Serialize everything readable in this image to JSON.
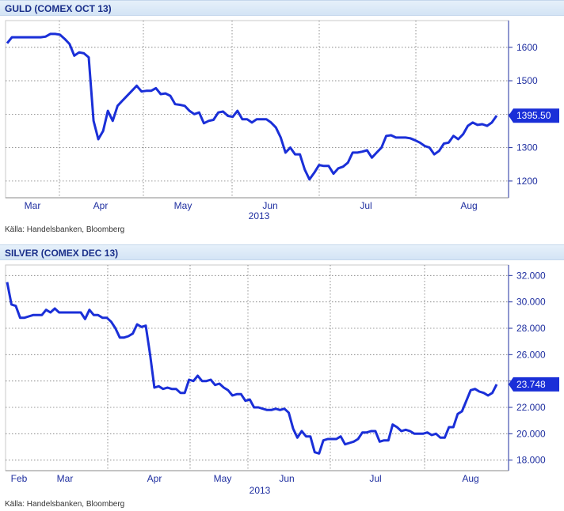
{
  "chart_data": [
    {
      "type": "line",
      "title": "GULD (COMEX OCT 13)",
      "source": "Källa: Handelsbanken, Bloomberg",
      "year": "2013",
      "x_tick_labels": [
        "Mar",
        "Apr",
        "May",
        "Jun",
        "Jul",
        "Aug"
      ],
      "y_ticks": [
        1200,
        1300,
        1400,
        1500,
        1600
      ],
      "y_tick_labels": [
        "1200",
        "1300",
        "",
        "1500",
        "1600"
      ],
      "ylim": [
        1150,
        1680
      ],
      "last_value_label": "1395.50",
      "series": [
        {
          "color": "#1a2fd8",
          "values": [
            1612,
            1630,
            1630,
            1630,
            1630,
            1630,
            1630,
            1630,
            1632,
            1640,
            1640,
            1638,
            1625,
            1610,
            1575,
            1585,
            1582,
            1570,
            1380,
            1325,
            1350,
            1410,
            1380,
            1425,
            1440,
            1455,
            1470,
            1485,
            1468,
            1470,
            1470,
            1478,
            1460,
            1462,
            1455,
            1430,
            1428,
            1425,
            1410,
            1400,
            1405,
            1373,
            1380,
            1383,
            1405,
            1408,
            1395,
            1392,
            1410,
            1385,
            1385,
            1375,
            1385,
            1385,
            1385,
            1375,
            1360,
            1330,
            1285,
            1300,
            1280,
            1280,
            1235,
            1205,
            1225,
            1248,
            1245,
            1245,
            1222,
            1238,
            1243,
            1255,
            1285,
            1285,
            1288,
            1292,
            1270,
            1285,
            1300,
            1335,
            1337,
            1330,
            1330,
            1330,
            1328,
            1322,
            1315,
            1305,
            1300,
            1280,
            1290,
            1312,
            1315,
            1335,
            1325,
            1340,
            1365,
            1375,
            1368,
            1370,
            1365,
            1375,
            1395.5
          ]
        }
      ]
    },
    {
      "type": "line",
      "title": "SILVER (COMEX DEC 13)",
      "source": "Källa: Handelsbanken, Bloomberg",
      "year": "2013",
      "x_tick_labels": [
        "Feb",
        "Mar",
        "Apr",
        "May",
        "Jun",
        "Jul",
        "Aug"
      ],
      "y_ticks": [
        18,
        20,
        22,
        24,
        26,
        28,
        30,
        32
      ],
      "y_tick_labels": [
        "18.000",
        "20.000",
        "22.000",
        "",
        "26.000",
        "28.000",
        "30.000",
        "32.000"
      ],
      "ylim": [
        17.2,
        32.8
      ],
      "last_value_label": "23.748",
      "series": [
        {
          "color": "#1a2fd8",
          "values": [
            31.5,
            29.8,
            29.7,
            28.8,
            28.8,
            28.9,
            29.0,
            29.0,
            29.0,
            29.4,
            29.2,
            29.5,
            29.2,
            29.2,
            29.2,
            29.2,
            29.2,
            29.2,
            28.7,
            29.4,
            29.0,
            29.0,
            28.8,
            28.8,
            28.5,
            28.0,
            27.3,
            27.3,
            27.4,
            27.6,
            28.3,
            28.1,
            28.2,
            26.0,
            23.5,
            23.6,
            23.4,
            23.5,
            23.4,
            23.4,
            23.1,
            23.1,
            24.1,
            24.0,
            24.4,
            24.0,
            24.0,
            24.1,
            23.7,
            23.8,
            23.5,
            23.3,
            22.9,
            23.0,
            23.0,
            22.5,
            22.6,
            22.0,
            22.0,
            21.9,
            21.8,
            21.8,
            21.9,
            21.8,
            21.9,
            21.6,
            20.4,
            19.7,
            20.2,
            19.8,
            19.8,
            18.6,
            18.5,
            19.5,
            19.6,
            19.6,
            19.6,
            19.8,
            19.2,
            19.3,
            19.4,
            19.6,
            20.1,
            20.1,
            20.2,
            20.2,
            19.4,
            19.5,
            19.5,
            20.7,
            20.5,
            20.2,
            20.3,
            20.2,
            20.0,
            20.0,
            20.0,
            20.1,
            19.9,
            20.0,
            19.7,
            19.7,
            20.5,
            20.5,
            21.5,
            21.7,
            22.5,
            23.3,
            23.4,
            23.2,
            23.1,
            22.9,
            23.1,
            23.748
          ]
        }
      ]
    }
  ],
  "panels": {
    "gold": {
      "title": "GULD (COMEX OCT 13)",
      "source": "Källa: Handelsbanken, Bloomberg"
    },
    "silver": {
      "title": "SILVER (COMEX DEC 13)",
      "source": "Källa: Handelsbanken, Bloomberg"
    }
  }
}
